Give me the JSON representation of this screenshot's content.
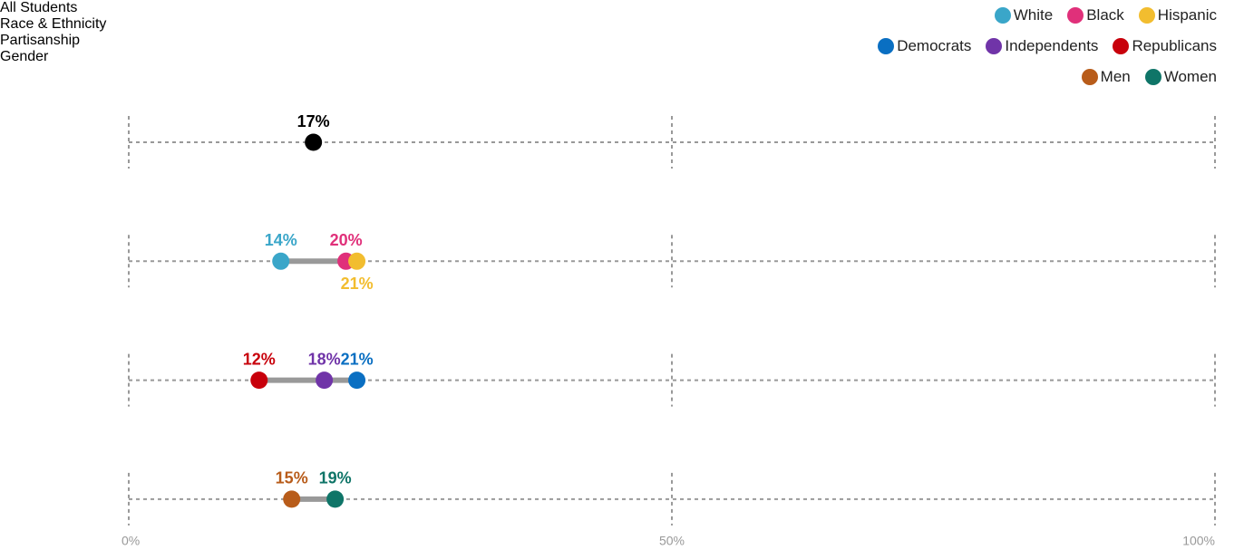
{
  "chart_data": {
    "type": "dot",
    "categories": [
      "All Students",
      "Race & Ethnicity",
      "Partisanship",
      "Gender"
    ],
    "series": [
      {
        "color": "#000000",
        "values": [
          17,
          null,
          null,
          null
        ],
        "value_labels": [
          "17%",
          null,
          null,
          null
        ]
      },
      {
        "name": "White",
        "color": "#3aa6c9",
        "values": [
          null,
          14,
          null,
          null
        ],
        "value_labels": [
          null,
          "14%",
          null,
          null
        ]
      },
      {
        "name": "Black",
        "color": "#e0307a",
        "values": [
          null,
          20,
          null,
          null
        ],
        "value_labels": [
          null,
          "20%",
          null,
          null
        ]
      },
      {
        "name": "Hispanic",
        "color": "#f2bd2f",
        "values": [
          null,
          21,
          null,
          null
        ],
        "value_labels": [
          null,
          "21%",
          null,
          null
        ]
      },
      {
        "name": "Democrats",
        "color": "#0a6fc2",
        "values": [
          null,
          null,
          21,
          null
        ],
        "value_labels": [
          null,
          null,
          "21%",
          null
        ]
      },
      {
        "name": "Independents",
        "color": "#7034a8",
        "values": [
          null,
          null,
          18,
          null
        ],
        "value_labels": [
          null,
          null,
          "18%",
          null
        ]
      },
      {
        "name": "Republicans",
        "color": "#c8000b",
        "values": [
          null,
          null,
          12,
          null
        ],
        "value_labels": [
          null,
          null,
          "12%",
          null
        ]
      },
      {
        "name": "Men",
        "color": "#b85c1a",
        "values": [
          null,
          null,
          null,
          15
        ],
        "value_labels": [
          null,
          null,
          null,
          "15%"
        ]
      },
      {
        "name": "Women",
        "color": "#0f7568",
        "values": [
          null,
          null,
          null,
          19
        ],
        "value_labels": [
          null,
          null,
          null,
          "19%"
        ]
      }
    ],
    "xlim": [
      0,
      100
    ],
    "xticks": [
      {
        "value": 0,
        "label": "0%"
      },
      {
        "value": 50,
        "label": "50%"
      },
      {
        "value": 100,
        "label": "100%"
      }
    ]
  }
}
